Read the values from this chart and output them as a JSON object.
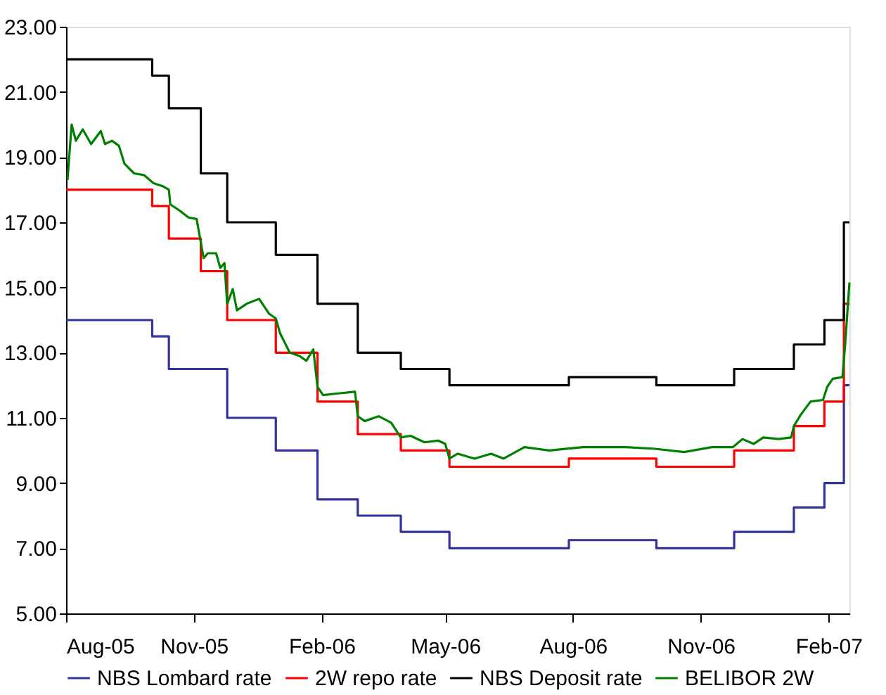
{
  "chart_data": {
    "type": "step",
    "xlim": [
      "2005-08-01",
      "2007-02-16"
    ],
    "xticks": [
      {
        "value": "2005-08-01",
        "label": "Aug-05"
      },
      {
        "value": "2005-11-01",
        "label": "Nov-05"
      },
      {
        "value": "2006-02-01",
        "label": "Feb-06"
      },
      {
        "value": "2006-05-01",
        "label": "May-06"
      },
      {
        "value": "2006-08-01",
        "label": "Aug-06"
      },
      {
        "value": "2006-11-01",
        "label": "Nov-06"
      },
      {
        "value": "2007-02-01",
        "label": "Feb-07"
      }
    ],
    "ylim": [
      5,
      23
    ],
    "yticks": [
      {
        "value": 5,
        "label": "5.00"
      },
      {
        "value": 7,
        "label": "7.00"
      },
      {
        "value": 9,
        "label": "9.00"
      },
      {
        "value": 11,
        "label": "11.00"
      },
      {
        "value": 13,
        "label": "13.00"
      },
      {
        "value": 15,
        "label": "15.00"
      },
      {
        "value": 17,
        "label": "17.00"
      },
      {
        "value": 19,
        "label": "19.00"
      },
      {
        "value": 21,
        "label": "21.00"
      },
      {
        "value": 23,
        "label": "23.00"
      }
    ],
    "grid": false,
    "legend": "bottom",
    "marker": "none",
    "line_style": "solid",
    "series": [
      {
        "name": "NBS Lombard rate",
        "color": "#333399",
        "x": [
          "2005-08-01",
          "2005-10-02",
          "2005-10-14",
          "2005-11-25",
          "2005-12-30",
          "2006-01-29",
          "2006-02-27",
          "2006-03-30",
          "2006-05-04",
          "2006-07-29",
          "2006-09-30",
          "2006-11-25",
          "2007-01-07",
          "2007-01-29",
          "2007-02-12",
          "2007-02-16"
        ],
        "values": [
          14,
          13.5,
          12.5,
          11,
          10,
          8.5,
          8,
          7.5,
          7,
          7.25,
          7,
          7.5,
          8.25,
          9,
          12,
          12
        ]
      },
      {
        "name": "2W repo rate",
        "color": "#ff0000",
        "x": [
          "2005-08-01",
          "2005-10-02",
          "2005-10-14",
          "2005-11-06",
          "2005-11-25",
          "2005-12-30",
          "2006-01-29",
          "2006-02-27",
          "2006-03-30",
          "2006-05-04",
          "2006-07-29",
          "2006-09-30",
          "2006-11-25",
          "2007-01-07",
          "2007-01-29",
          "2007-02-12",
          "2007-02-16"
        ],
        "values": [
          18,
          17.5,
          16.5,
          15.5,
          14,
          13,
          11.5,
          10.5,
          10,
          9.5,
          9.75,
          9.5,
          10,
          10.75,
          11.5,
          14.5,
          14.5
        ]
      },
      {
        "name": "NBS Deposit rate",
        "color": "#000000",
        "x": [
          "2005-08-01",
          "2005-10-02",
          "2005-10-14",
          "2005-11-06",
          "2005-11-25",
          "2005-12-30",
          "2006-01-29",
          "2006-02-27",
          "2006-03-30",
          "2006-05-04",
          "2006-07-29",
          "2006-09-30",
          "2006-11-25",
          "2007-01-07",
          "2007-01-29",
          "2007-02-12",
          "2007-02-16"
        ],
        "values": [
          22,
          21.5,
          20.5,
          18.5,
          17,
          16,
          14.5,
          13,
          12.5,
          12,
          12.25,
          12,
          12.5,
          13.25,
          14,
          17,
          17
        ]
      },
      {
        "name": "BELIBOR 2W",
        "type": "line",
        "color": "#008000",
        "x": [
          "2005-08-02",
          "2005-08-05",
          "2005-08-08",
          "2005-08-13",
          "2005-08-19",
          "2005-08-26",
          "2005-08-29",
          "2005-09-03",
          "2005-09-08",
          "2005-09-12",
          "2005-09-19",
          "2005-09-26",
          "2005-10-03",
          "2005-10-10",
          "2005-10-14",
          "2005-10-15",
          "2005-10-22",
          "2005-10-28",
          "2005-11-03",
          "2005-11-08",
          "2005-11-11",
          "2005-11-17",
          "2005-11-20",
          "2005-11-23",
          "2005-11-25",
          "2005-11-29",
          "2005-12-02",
          "2005-12-09",
          "2005-12-18",
          "2005-12-25",
          "2005-12-30",
          "2006-01-02",
          "2006-01-09",
          "2006-01-16",
          "2006-01-21",
          "2006-01-26",
          "2006-01-29",
          "2006-02-02",
          "2006-02-13",
          "2006-02-25",
          "2006-02-27",
          "2006-03-04",
          "2006-03-14",
          "2006-03-23",
          "2006-03-30",
          "2006-04-06",
          "2006-04-16",
          "2006-04-26",
          "2006-05-01",
          "2006-05-04",
          "2006-05-10",
          "2006-05-22",
          "2006-06-03",
          "2006-06-12",
          "2006-06-27",
          "2006-07-15",
          "2006-08-08",
          "2006-09-08",
          "2006-09-29",
          "2006-10-20",
          "2006-11-09",
          "2006-11-24",
          "2006-12-01",
          "2006-12-09",
          "2006-12-16",
          "2006-12-27",
          "2007-01-05",
          "2007-01-07",
          "2007-01-12",
          "2007-01-19",
          "2007-01-28",
          "2007-01-31",
          "2007-02-04",
          "2007-02-11",
          "2007-02-13",
          "2007-02-16"
        ],
        "values": [
          18.3,
          20.0,
          19.5,
          19.85,
          19.4,
          19.8,
          19.4,
          19.5,
          19.35,
          18.8,
          18.5,
          18.45,
          18.2,
          18.1,
          18.0,
          17.55,
          17.35,
          17.15,
          17.1,
          15.9,
          16.05,
          16.05,
          15.6,
          15.75,
          14.5,
          14.95,
          14.3,
          14.5,
          14.65,
          14.2,
          14.05,
          13.6,
          13.0,
          12.9,
          12.75,
          13.1,
          11.95,
          11.7,
          11.75,
          11.8,
          11.05,
          10.9,
          11.05,
          10.85,
          10.4,
          10.45,
          10.25,
          10.3,
          10.2,
          9.75,
          9.9,
          9.75,
          9.9,
          9.75,
          10.1,
          10.0,
          10.1,
          10.1,
          10.05,
          9.95,
          10.1,
          10.1,
          10.35,
          10.2,
          10.4,
          10.35,
          10.4,
          10.75,
          11.1,
          11.5,
          11.55,
          11.95,
          12.2,
          12.25,
          13.3,
          15.15
        ]
      }
    ]
  }
}
